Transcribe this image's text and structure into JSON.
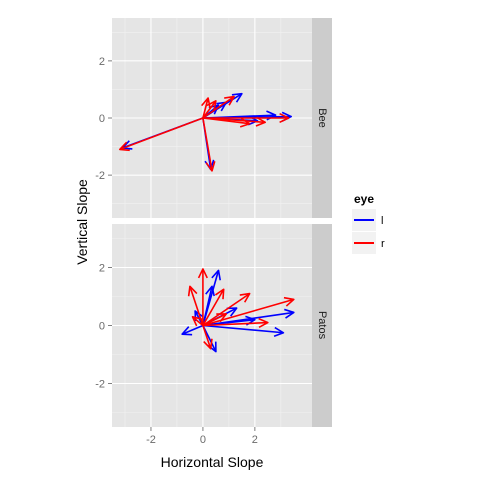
{
  "chart_data": {
    "type": "line",
    "subtype": "faceted-arrows",
    "xlabel": "Horizontal Slope",
    "ylabel": "Vertical Slope",
    "xlim": [
      -3.5,
      4.2
    ],
    "ylim": [
      -3.5,
      3.5
    ],
    "x_ticks": [
      -2,
      0,
      2
    ],
    "x_tick_labels": [
      "-2",
      "0",
      "2"
    ],
    "y_ticks": [
      -2,
      0,
      2
    ],
    "y_tick_labels": [
      "-2",
      "0",
      "2"
    ],
    "grid": true,
    "legend": {
      "title": "eye",
      "placement": "right",
      "entries": [
        "l",
        "r"
      ]
    },
    "series": [
      {
        "name": "l",
        "color": "#0000ff"
      },
      {
        "name": "r",
        "color": "#ff0000"
      }
    ],
    "facets": [
      {
        "label": "Bee",
        "arrows": [
          {
            "eye": "l",
            "x": [
              0,
              3.4
            ],
            "y": [
              0,
              0.05
            ]
          },
          {
            "eye": "l",
            "x": [
              0,
              2.8
            ],
            "y": [
              0,
              0.1
            ]
          },
          {
            "eye": "l",
            "x": [
              0,
              1.5
            ],
            "y": [
              0,
              0.85
            ]
          },
          {
            "eye": "l",
            "x": [
              0,
              0.9
            ],
            "y": [
              0,
              0.55
            ]
          },
          {
            "eye": "l",
            "x": [
              0,
              -3.1
            ],
            "y": [
              0,
              -1.05
            ]
          },
          {
            "eye": "l",
            "x": [
              0,
              0.3
            ],
            "y": [
              0,
              -1.8
            ]
          },
          {
            "eye": "l",
            "x": [
              0,
              0.6
            ],
            "y": [
              0,
              0.45
            ]
          },
          {
            "eye": "l",
            "x": [
              0,
              2.1
            ],
            "y": [
              0,
              -0.1
            ]
          },
          {
            "eye": "r",
            "x": [
              0,
              3.3
            ],
            "y": [
              0,
              0.0
            ]
          },
          {
            "eye": "r",
            "x": [
              0,
              2.4
            ],
            "y": [
              0,
              -0.15
            ]
          },
          {
            "eye": "r",
            "x": [
              0,
              1.2
            ],
            "y": [
              0,
              0.75
            ]
          },
          {
            "eye": "r",
            "x": [
              0,
              -3.2
            ],
            "y": [
              0,
              -1.1
            ]
          },
          {
            "eye": "r",
            "x": [
              0,
              0.35
            ],
            "y": [
              0,
              -1.85
            ]
          },
          {
            "eye": "r",
            "x": [
              0,
              0.5
            ],
            "y": [
              0,
              0.6
            ]
          },
          {
            "eye": "r",
            "x": [
              0,
              1.8
            ],
            "y": [
              0,
              -0.2
            ]
          },
          {
            "eye": "r",
            "x": [
              0,
              0.2
            ],
            "y": [
              0,
              0.7
            ]
          }
        ]
      },
      {
        "label": "Patos",
        "arrows": [
          {
            "eye": "l",
            "x": [
              0,
              0.6
            ],
            "y": [
              0,
              1.9
            ]
          },
          {
            "eye": "l",
            "x": [
              0,
              0.35
            ],
            "y": [
              0,
              1.35
            ]
          },
          {
            "eye": "l",
            "x": [
              0,
              3.5
            ],
            "y": [
              0,
              0.45
            ]
          },
          {
            "eye": "l",
            "x": [
              0,
              3.1
            ],
            "y": [
              0,
              -0.25
            ]
          },
          {
            "eye": "l",
            "x": [
              0,
              2.0
            ],
            "y": [
              0,
              0.2
            ]
          },
          {
            "eye": "l",
            "x": [
              0,
              -0.8
            ],
            "y": [
              0,
              -0.3
            ]
          },
          {
            "eye": "l",
            "x": [
              0,
              0.5
            ],
            "y": [
              0,
              -0.9
            ]
          },
          {
            "eye": "l",
            "x": [
              0,
              1.3
            ],
            "y": [
              0,
              0.6
            ]
          },
          {
            "eye": "l",
            "x": [
              0,
              -0.3
            ],
            "y": [
              0,
              0.5
            ]
          },
          {
            "eye": "r",
            "x": [
              0,
              0.0
            ],
            "y": [
              0,
              1.95
            ]
          },
          {
            "eye": "r",
            "x": [
              0,
              -0.5
            ],
            "y": [
              0,
              1.35
            ]
          },
          {
            "eye": "r",
            "x": [
              0,
              3.5
            ],
            "y": [
              0,
              0.9
            ]
          },
          {
            "eye": "r",
            "x": [
              0,
              2.5
            ],
            "y": [
              0,
              0.1
            ]
          },
          {
            "eye": "r",
            "x": [
              0,
              1.8
            ],
            "y": [
              0,
              1.1
            ]
          },
          {
            "eye": "r",
            "x": [
              0,
              0.3
            ],
            "y": [
              0,
              -0.8
            ]
          },
          {
            "eye": "r",
            "x": [
              0,
              -0.4
            ],
            "y": [
              0,
              0.3
            ]
          },
          {
            "eye": "r",
            "x": [
              0,
              0.9
            ],
            "y": [
              0,
              0.4
            ]
          },
          {
            "eye": "r",
            "x": [
              0,
              0.8
            ],
            "y": [
              0,
              1.25
            ]
          }
        ]
      }
    ]
  }
}
